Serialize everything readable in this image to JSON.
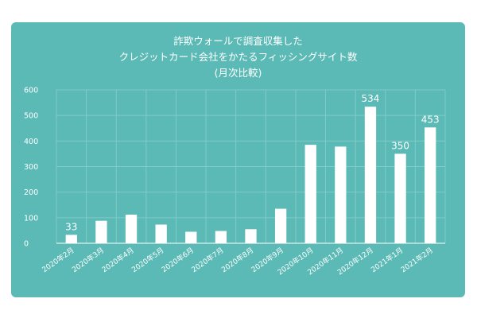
{
  "colors": {
    "card_bg": "#5bbab6",
    "bar": "#ffffff",
    "text": "#ffffff",
    "grid": "#7fcbc7",
    "axis": "#ffffff"
  },
  "chart_data": {
    "type": "bar",
    "title_lines": [
      "詐欺ウォールで調査収集した",
      "クレジットカード会社をかたるフィッシングサイト数",
      "(月次比較)"
    ],
    "xlabel": "",
    "ylabel": "",
    "ylim": [
      0,
      600
    ],
    "yticks": [
      0,
      100,
      200,
      300,
      400,
      500,
      600
    ],
    "grid": true,
    "categories": [
      "2020年2月",
      "2020年3月",
      "2020年4月",
      "2020年5月",
      "2020年6月",
      "2020年7月",
      "2020年8月",
      "2020年9月",
      "2020年10月",
      "2020年11月",
      "2020年12月",
      "2021年1月",
      "2021年2月"
    ],
    "values": [
      33,
      88,
      112,
      73,
      45,
      48,
      55,
      135,
      385,
      378,
      534,
      350,
      453
    ],
    "data_labels": [
      "33",
      "",
      "",
      "",
      "",
      "",
      "",
      "",
      "",
      "",
      "534",
      "350",
      "453"
    ]
  }
}
